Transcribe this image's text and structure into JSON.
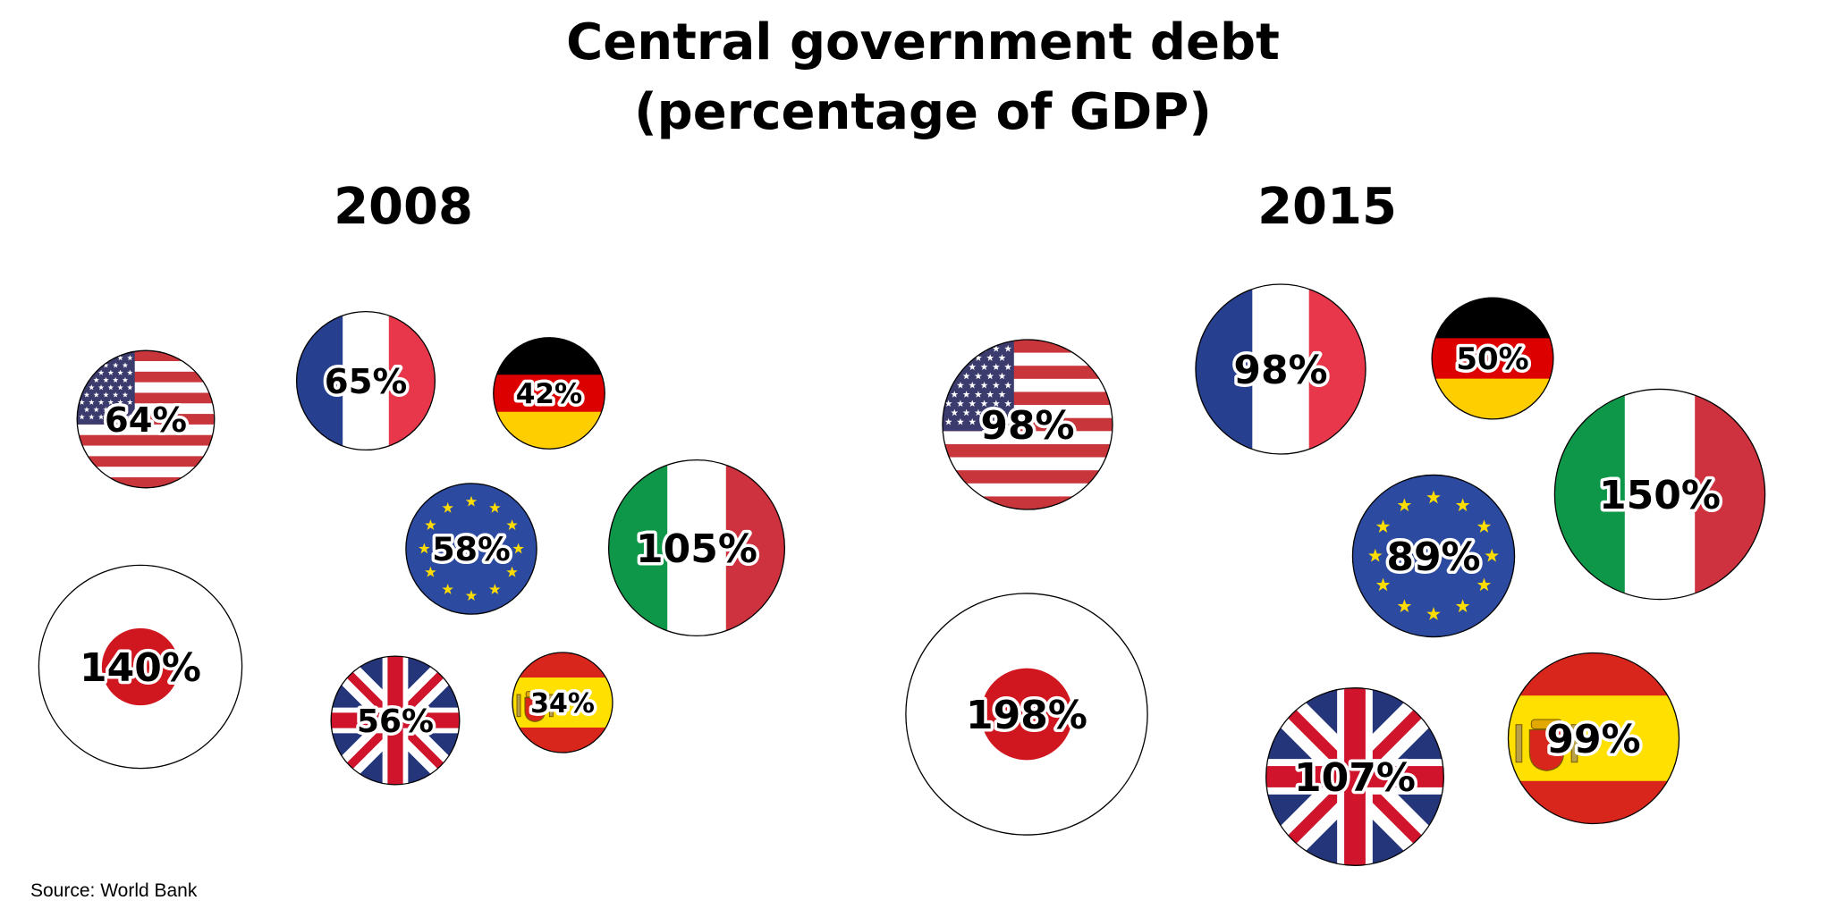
{
  "chart_data": {
    "type": "bubble",
    "title": "Central government debt",
    "subtitle": "(percentage of GDP)",
    "source": "Source: World Bank",
    "unit": "%",
    "panels": [
      {
        "year": "2008",
        "items": [
          {
            "flag": "usa-flag",
            "value": 64,
            "label": "64%"
          },
          {
            "flag": "france-flag",
            "value": 65,
            "label": "65%"
          },
          {
            "flag": "germany-flag",
            "value": 42,
            "label": "42%"
          },
          {
            "flag": "eu-flag",
            "value": 58,
            "label": "58%"
          },
          {
            "flag": "italy-flag",
            "value": 105,
            "label": "105%"
          },
          {
            "flag": "japan-flag",
            "value": 140,
            "label": "140%"
          },
          {
            "flag": "uk-flag",
            "value": 56,
            "label": "56%"
          },
          {
            "flag": "spain-flag",
            "value": 34,
            "label": "34%"
          }
        ]
      },
      {
        "year": "2015",
        "items": [
          {
            "flag": "usa-flag",
            "value": 98,
            "label": "98%"
          },
          {
            "flag": "france-flag",
            "value": 98,
            "label": "98%"
          },
          {
            "flag": "germany-flag",
            "value": 50,
            "label": "50%"
          },
          {
            "flag": "italy-flag",
            "value": 150,
            "label": "150%"
          },
          {
            "flag": "eu-flag",
            "value": 89,
            "label": "89%"
          },
          {
            "flag": "japan-flag",
            "value": 198,
            "label": "198%"
          },
          {
            "flag": "uk-flag",
            "value": 107,
            "label": "107%"
          },
          {
            "flag": "spain-flag",
            "value": 99,
            "label": "99%"
          }
        ]
      }
    ]
  },
  "colors": {
    "usa_red": "#c8363c",
    "usa_blue": "#3c3b6e",
    "france_blue": "#273f8f",
    "france_red": "#e8374a",
    "germany_black": "#000000",
    "germany_red": "#dd0000",
    "germany_gold": "#ffce00",
    "italy_green": "#0e9748",
    "italy_red": "#cf323f",
    "eu_blue": "#2b4aa0",
    "eu_star": "#ffdd00",
    "japan_red": "#d0171f",
    "uk_blue": "#24357a",
    "uk_red": "#cf142b",
    "spain_red": "#d9261c",
    "spain_yellow": "#ffe000"
  }
}
